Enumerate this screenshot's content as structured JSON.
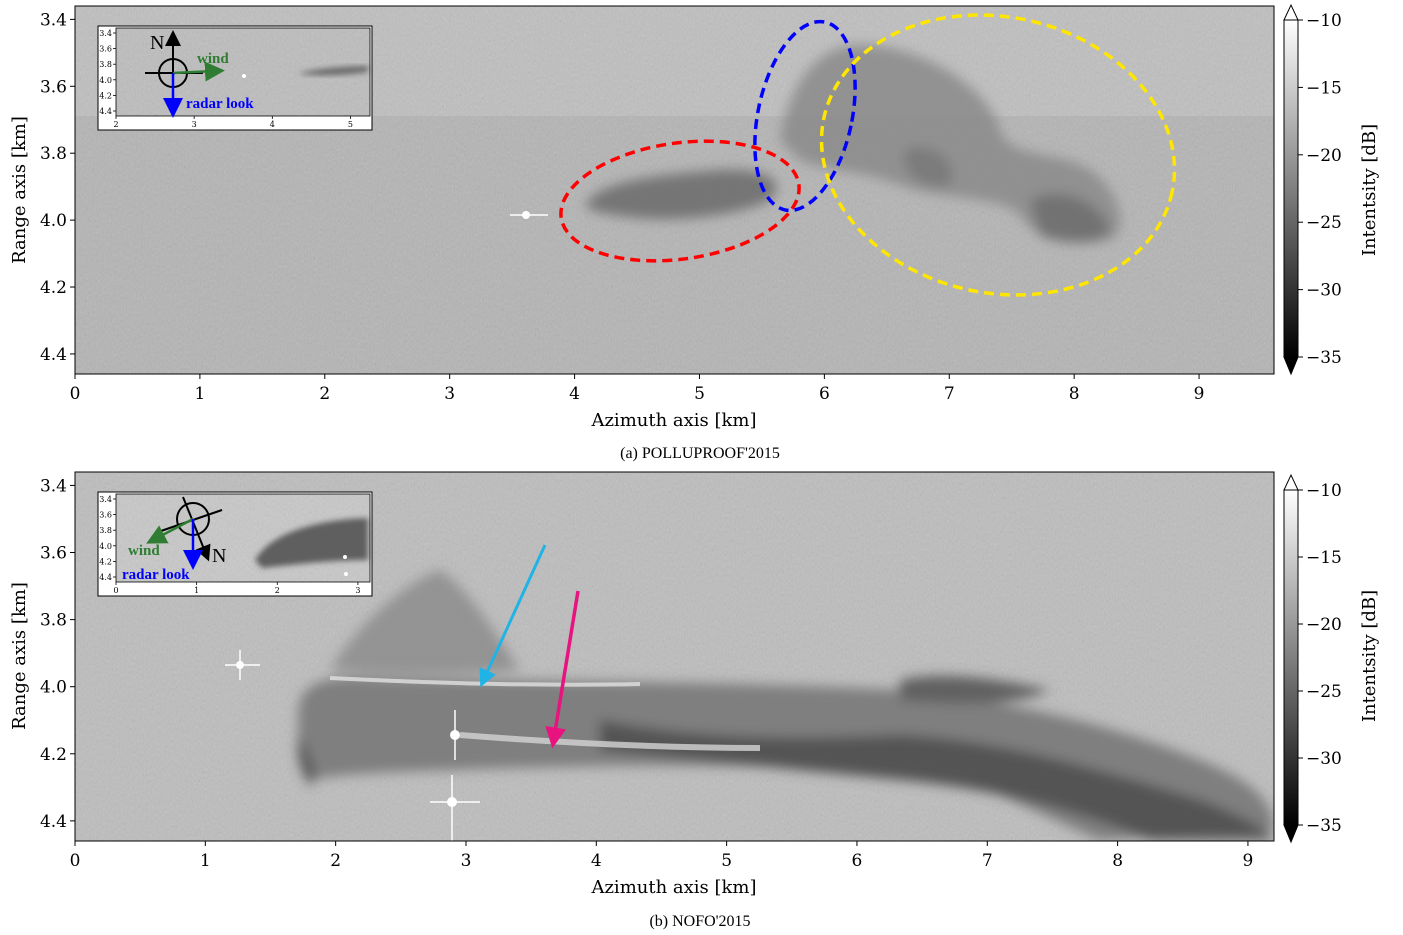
{
  "panels": [
    {
      "caption": "(a) POLLUPROOF'2015",
      "xlabel": "Azimuth axis [km]",
      "ylabel": "Range axis [km]",
      "xlim": [
        0,
        9.6
      ],
      "ylim": [
        4.46,
        3.36
      ],
      "xticks": [
        "0",
        "1",
        "2",
        "3",
        "4",
        "5",
        "6",
        "7",
        "8",
        "9"
      ],
      "yticks": [
        "3.4",
        "3.6",
        "3.8",
        "4.0",
        "4.2",
        "4.4"
      ],
      "colorbar": {
        "label": "Intentsity [dB]",
        "ticks": [
          "−10",
          "−15",
          "−20",
          "−25",
          "−30",
          "−35"
        ],
        "range": [
          -35,
          -10
        ],
        "extend": "both"
      },
      "inset": {
        "xticks": [
          "2",
          "3",
          "4",
          "5"
        ],
        "yticks": [
          "3.4",
          "3.6",
          "3.8",
          "4.0",
          "4.2",
          "4.4"
        ],
        "north_label": "N",
        "wind_label": "wind",
        "radar_label": "radar  look"
      },
      "ellipses": [
        {
          "name": "red",
          "color": "#ff0000"
        },
        {
          "name": "blue",
          "color": "#0000ff"
        },
        {
          "name": "yellow",
          "color": "#ffe600"
        }
      ]
    },
    {
      "caption": "(b) NOFO'2015",
      "xlabel": "Azimuth axis [km]",
      "ylabel": "Range axis [km]",
      "xlim": [
        0,
        9.2
      ],
      "ylim": [
        4.46,
        3.36
      ],
      "xticks": [
        "0",
        "1",
        "2",
        "3",
        "4",
        "5",
        "6",
        "7",
        "8",
        "9"
      ],
      "yticks": [
        "3.4",
        "3.6",
        "3.8",
        "4.0",
        "4.2",
        "4.4"
      ],
      "colorbar": {
        "label": "Intentsity [dB]",
        "ticks": [
          "−10",
          "−15",
          "−20",
          "−25",
          "−30",
          "−35"
        ],
        "range": [
          -35,
          -10
        ],
        "extend": "both"
      },
      "inset": {
        "xticks": [
          "0",
          "1",
          "2",
          "3"
        ],
        "yticks": [
          "3.4",
          "3.6",
          "3.8",
          "4.0",
          "4.2",
          "4.4"
        ],
        "north_label": "N",
        "wind_label": "wind",
        "radar_label": "radar  look"
      },
      "arrows": [
        {
          "name": "cyan",
          "color": "#1fb3e6"
        },
        {
          "name": "magenta",
          "color": "#e8137f"
        }
      ]
    }
  ]
}
